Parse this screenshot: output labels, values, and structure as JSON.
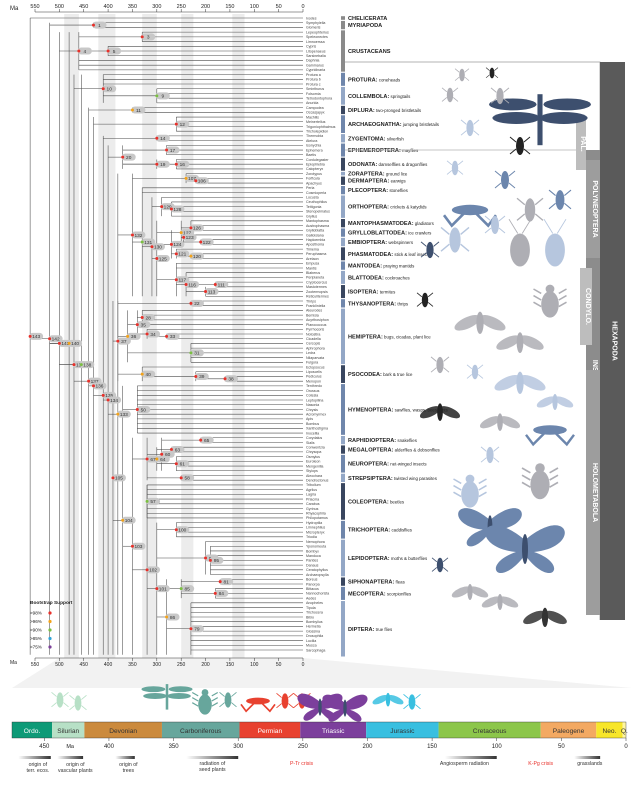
{
  "top_axis": {
    "unit": "Ma",
    "ticks": [
      "550",
      "500",
      "450",
      "400",
      "350",
      "300",
      "250",
      "200",
      "150",
      "100",
      "50",
      "0"
    ]
  },
  "taxa_order": [
    "Ixodes",
    "Symphylella",
    "Glomeris",
    "Lepeophteirus",
    "Speleonectes",
    "Limnoerssa",
    "Cypris",
    "Litopenaeus",
    "Sarsinebalia",
    "Daphnia",
    "Gammarus",
    "Cypridinaria",
    "Protura a",
    "Protura b",
    "Protura c",
    "Sminthurus",
    "Folsomia",
    "Tetrodontophora",
    "Anurida",
    "Campodea",
    "Occasjapyx",
    "Machilis",
    "Meinertellus",
    "Trigoniophthalmus",
    "Tricholepidion",
    "Thermobia",
    "Atelura",
    "Isonychia",
    "Ephemera",
    "Baetis",
    "Cordulegaster",
    "Epiophlebia",
    "Calopteryx",
    "Zorotypus",
    "Forficula",
    "Apachyus",
    "Perla",
    "Cosmioperla",
    "Locusta",
    "Ceuthophilus",
    "Tettigonia",
    "Stenopelmatus",
    "Gryllus",
    "Mantophasma",
    "Austrophasma",
    "Grylloblatta",
    "Galloisiana",
    "Haploembia",
    "Aposthonia",
    "Timema",
    "Peruphasma",
    "Aretaon",
    "Empusa",
    "Mantis",
    "Blaberus",
    "Periplaneta",
    "Cryptocercus",
    "Mastotermes",
    "Zootermopsis",
    "Reticulitermes",
    "Thrips",
    "Frankliniella",
    "Aleurodes",
    "Bemisia",
    "Acyrthosiphon",
    "Planococcus",
    "Pyrrhocoris",
    "Notostira",
    "Cicadella",
    "Cercopis",
    "Aphrophora",
    "Ledra",
    "Nilaparvata",
    "Fulgora",
    "Ectopsocus",
    "Liposcelis",
    "Pediculus",
    "Menopon",
    "Tenthredo",
    "Orussus",
    "Cotesia",
    "Leptopilina",
    "Nasonia",
    "Chrysis",
    "Acromyrmex",
    "Apis",
    "Bombus",
    "Xanthostigma",
    "Inocellia",
    "Corydalus",
    "Sialis",
    "Conwentzia",
    "Chrysopa",
    "Osmylus",
    "Euroleon",
    "Mengenilla",
    "Stylops",
    "Aleochara",
    "Dendroctonus",
    "Tribolium",
    "Agrilus",
    "Lagria",
    "Priacma",
    "Carabus",
    "Gyrinus",
    "Rhyacophila",
    "Philopotamus",
    "Hydroptila",
    "Limnephilus",
    "Micropteryx",
    "Triodia",
    "Nemophora",
    "Yponomeuta",
    "Bombyx",
    "Manduca",
    "Parides",
    "Danaus",
    "Ceratophyllus",
    "Archaeopsylla",
    "Boreus",
    "Panorpa",
    "Bittacus",
    "Nannochorista",
    "Aedes",
    "Anopheles",
    "Tipula",
    "Trichocera",
    "Bibio",
    "Bombylius",
    "Hermetia",
    "Glossina",
    "Drosophila",
    "Lucilia",
    "Musca",
    "Sarcophaga"
  ],
  "nodes": [
    {
      "id": "143"
    },
    {
      "id": "142"
    },
    {
      "id": "141"
    },
    {
      "id": "140"
    },
    {
      "id": "139"
    },
    {
      "id": "138"
    },
    {
      "id": "137"
    },
    {
      "id": "136"
    },
    {
      "id": "135"
    },
    {
      "id": "134"
    },
    {
      "id": "133"
    },
    {
      "id": "1"
    },
    {
      "id": "4"
    },
    {
      "id": "5"
    },
    {
      "id": "3"
    },
    {
      "id": "10"
    },
    {
      "id": "9"
    },
    {
      "id": "11"
    },
    {
      "id": "12"
    },
    {
      "id": "14"
    },
    {
      "id": "16"
    },
    {
      "id": "17"
    },
    {
      "id": "19"
    },
    {
      "id": "20"
    },
    {
      "id": "107"
    },
    {
      "id": "106"
    },
    {
      "id": "132"
    },
    {
      "id": "131"
    },
    {
      "id": "130"
    },
    {
      "id": "129"
    },
    {
      "id": "128"
    },
    {
      "id": "127"
    },
    {
      "id": "126"
    },
    {
      "id": "125"
    },
    {
      "id": "124"
    },
    {
      "id": "123"
    },
    {
      "id": "122"
    },
    {
      "id": "121"
    },
    {
      "id": "120"
    },
    {
      "id": "117"
    },
    {
      "id": "116"
    },
    {
      "id": "113"
    },
    {
      "id": "111"
    },
    {
      "id": "22"
    },
    {
      "id": "37"
    },
    {
      "id": "36"
    },
    {
      "id": "35"
    },
    {
      "id": "34"
    },
    {
      "id": "33"
    },
    {
      "id": "31"
    },
    {
      "id": "28"
    },
    {
      "id": "105"
    },
    {
      "id": "104"
    },
    {
      "id": "103"
    },
    {
      "id": "102"
    },
    {
      "id": "101"
    },
    {
      "id": "100"
    },
    {
      "id": "99"
    },
    {
      "id": "95"
    },
    {
      "id": "86"
    },
    {
      "id": "85"
    },
    {
      "id": "84"
    },
    {
      "id": "81"
    },
    {
      "id": "79"
    },
    {
      "id": "67"
    },
    {
      "id": "65"
    },
    {
      "id": "64"
    },
    {
      "id": "63"
    },
    {
      "id": "61"
    },
    {
      "id": "60"
    },
    {
      "id": "58"
    },
    {
      "id": "57"
    },
    {
      "id": "50"
    },
    {
      "id": "40"
    },
    {
      "id": "39"
    },
    {
      "id": "38"
    }
  ],
  "clades": [
    {
      "name": "CHELICERATA",
      "desc": ""
    },
    {
      "name": "MYRIAPODA",
      "desc": ""
    },
    {
      "name": "CRUSTACEANS",
      "desc": ""
    },
    {
      "name": "PROTURA:",
      "desc": "coneheads"
    },
    {
      "name": "COLLEMBOLA:",
      "desc": "springtails"
    },
    {
      "name": "DIPLURA:",
      "desc": "two-pronged bristletails"
    },
    {
      "name": "ARCHAEOGNATHA:",
      "desc": "jumping bristletails"
    },
    {
      "name": "ZYGENTOMA:",
      "desc": "silverfish"
    },
    {
      "name": "ODONATA:",
      "desc": "damselflies & dragonflies"
    },
    {
      "name": "EPHEMEROPTERA:",
      "desc": "mayflies"
    },
    {
      "name": "ZORAPTERA:",
      "desc": "ground lice"
    },
    {
      "name": "DERMAPTERA:",
      "desc": "earwigs"
    },
    {
      "name": "PLECOPTERA:",
      "desc": "stoneflies"
    },
    {
      "name": "ORTHOPTERA:",
      "desc": "crickets & katydids"
    },
    {
      "name": "MANTOPHASMATODEA:",
      "desc": "gladiators"
    },
    {
      "name": "GRYLLOBLATTODEA:",
      "desc": "ice crawlers"
    },
    {
      "name": "EMBIOPTERA:",
      "desc": "webspinners"
    },
    {
      "name": "PHASMATODEA:",
      "desc": "stick & leaf insects"
    },
    {
      "name": "MANTODEA:",
      "desc": "praying mantids"
    },
    {
      "name": "BLATTODEA:",
      "desc": "cockroaches"
    },
    {
      "name": "ISOPTERA:",
      "desc": "termites"
    },
    {
      "name": "THYSANOPTERA:",
      "desc": "thrips"
    },
    {
      "name": "HEMIPTERA:",
      "desc": "bugs, cicadas, plant lice"
    },
    {
      "name": "PSOCODEA:",
      "desc": "bark & true lice"
    },
    {
      "name": "HYMENOPTERA:",
      "desc": "sawflies, wasps, bees, ants"
    },
    {
      "name": "RAPHIDIOPTERA:",
      "desc": "snakeflies"
    },
    {
      "name": "MEGALOPTERA:",
      "desc": "alderflies & dobsonflies"
    },
    {
      "name": "NEUROPTERA:",
      "desc": "net-winged insects"
    },
    {
      "name": "STREPSIPTERA:",
      "desc": "twisted wing parasites"
    },
    {
      "name": "COLEOPTERA:",
      "desc": "beetles"
    },
    {
      "name": "TRICHOPTERA:",
      "desc": "caddisflies"
    },
    {
      "name": "LEPIDOPTERA:",
      "desc": "moths & butterflies"
    },
    {
      "name": "SIPHONAPTERA:",
      "desc": "fleas"
    },
    {
      "name": "MECOPTERA:",
      "desc": "scorpionflies"
    },
    {
      "name": "DIPTERA:",
      "desc": "true flies"
    }
  ],
  "side_bars": {
    "hexapoda": "HEXAPODA",
    "insecta": "INSECTA",
    "pal": "PAL.",
    "polyneoptera": "POLYNEOPTERA",
    "condylo": "CONDYLO.",
    "holometabola": "HOLOMETABOLA"
  },
  "bootstrap": {
    "title": "Bootstrap Support",
    "levels": [
      {
        "label": ">98%",
        "color": "#e8302a"
      },
      {
        "label": ">96%",
        "color": "#f3a31b"
      },
      {
        "label": ">90%",
        "color": "#7bbf42"
      },
      {
        "label": ">85%",
        "color": "#2fa3d6"
      },
      {
        "label": ">75%",
        "color": "#7a3f98"
      }
    ]
  },
  "bottom_axis": {
    "unit": "Ma",
    "ticks": [
      "550",
      "500",
      "450",
      "400",
      "350",
      "300",
      "250",
      "200",
      "150",
      "100",
      "50",
      "0"
    ]
  },
  "periods": [
    {
      "name": "Ordo.",
      "color": "#0e9a77",
      "text": "#ffffff"
    },
    {
      "name": "Silurian",
      "color": "#b7e0c6",
      "text": "#333333"
    },
    {
      "name": "Devonian",
      "color": "#cb8a3d",
      "text": "#333333"
    },
    {
      "name": "Carboniferous",
      "color": "#67a69c",
      "text": "#333333"
    },
    {
      "name": "Permian",
      "color": "#e8412f",
      "text": "#ffffff"
    },
    {
      "name": "Triassic",
      "color": "#7c3f9c",
      "text": "#ffffff"
    },
    {
      "name": "Jurassic",
      "color": "#38bfe0",
      "text": "#333333"
    },
    {
      "name": "Cretaceous",
      "color": "#8cc64a",
      "text": "#333333"
    },
    {
      "name": "Paleogene",
      "color": "#f3a962",
      "text": "#333333"
    },
    {
      "name": "Neo.",
      "color": "#f7e62a",
      "text": "#333333"
    },
    {
      "name": "Q.",
      "color": "#fff6a0",
      "text": "#333333"
    }
  ],
  "period_ticks": {
    "unit": "Ma",
    "ticks": [
      "450",
      "400",
      "350",
      "300",
      "250",
      "200",
      "150",
      "100",
      "50",
      "0"
    ]
  },
  "events": [
    {
      "label": "origin of terr. ecos.",
      "color": "#333333"
    },
    {
      "label": "origin of vascular plants",
      "color": "#333333"
    },
    {
      "label": "origin of trees",
      "color": "#333333"
    },
    {
      "label": "radiation of seed plants",
      "color": "#333333"
    },
    {
      "label": "P-Tr crisis",
      "color": "#e8302a"
    },
    {
      "label": "Angiosperm radiation",
      "color": "#333333"
    },
    {
      "label": "K-Pg crisis",
      "color": "#e8302a"
    },
    {
      "label": "grasslands",
      "color": "#333333"
    }
  ],
  "colors": {
    "branch": "#4a4a4a",
    "node_fill": "#c8c8c8",
    "band": "#ececec",
    "sil_dark": "#3d4f6e",
    "sil_mid": "#6c86ad",
    "sil_light": "#b6c6de",
    "sil_grey": "#aeaeb4",
    "bar_dark": "#5a5a5a",
    "bar_mid": "#8c8c8c",
    "bar_light": "#b9b9b9"
  }
}
